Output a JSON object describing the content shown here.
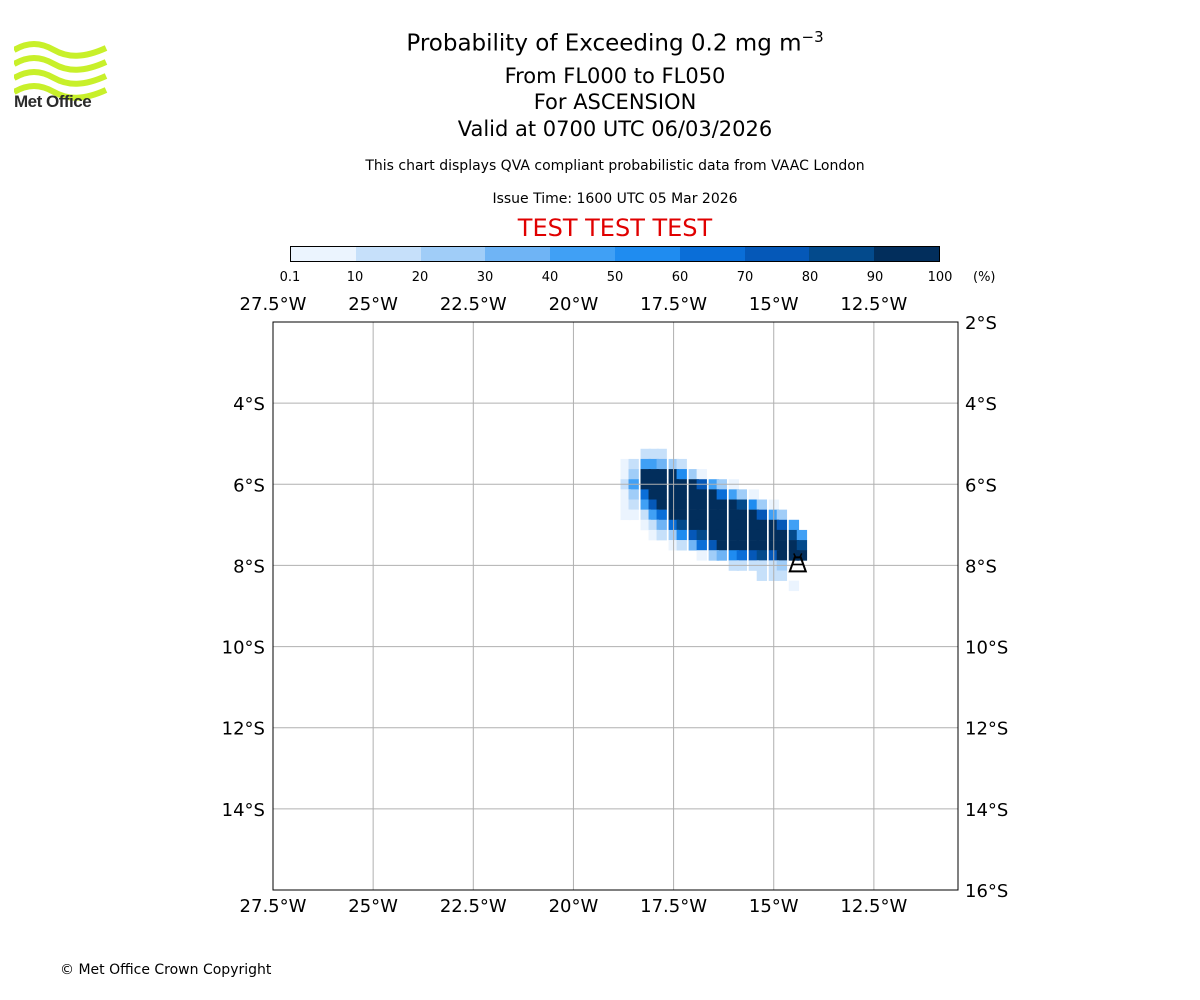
{
  "logo": {
    "text": "Met Office",
    "color": "#c8f02a"
  },
  "header": {
    "title_main": "Probability of Exceeding 0.2 mg m",
    "title_sup": "−3",
    "level_range": "From FL000 to FL050",
    "location": "For ASCENSION",
    "valid_time": "Valid at 0700 UTC 06/03/2026",
    "description": "This chart displays QVA compliant probabilistic data from VAAC London",
    "issue_time": "Issue Time: 1600 UTC 05 Mar 2026",
    "test_banner": "TEST TEST TEST",
    "test_color": "#e00000"
  },
  "colorbar": {
    "ticks": [
      "0.1",
      "10",
      "20",
      "30",
      "40",
      "50",
      "60",
      "70",
      "80",
      "90",
      "100"
    ],
    "unit": "(%)",
    "colors": [
      "#ebf4fe",
      "#c6e0fa",
      "#a0cdf8",
      "#6fb4f5",
      "#40a0f5",
      "#1f8cf0",
      "#0a6ed8",
      "#0558b8",
      "#034a8c",
      "#022e5c"
    ]
  },
  "footer": {
    "copyright": "© Met Office Crown Copyright"
  },
  "chart_data": {
    "type": "heatmap",
    "title": "Probability of Exceeding 0.2 mg m−3",
    "xlim": [
      -27.5,
      -10.4
    ],
    "ylim": [
      -16.0,
      -2.0
    ],
    "x_ticks": [
      -27.5,
      -25,
      -22.5,
      -20,
      -17.5,
      -15,
      -12.5
    ],
    "x_tick_labels": [
      "27.5°W",
      "25°W",
      "22.5°W",
      "20°W",
      "17.5°W",
      "15°W",
      "12.5°W"
    ],
    "y_ticks": [
      -2,
      -4,
      -6,
      -8,
      -10,
      -12,
      -14,
      -16
    ],
    "y_tick_labels_left": [
      "",
      "4°S",
      "6°S",
      "8°S",
      "10°S",
      "12°S",
      "14°S",
      ""
    ],
    "y_tick_labels_right": [
      "2°S",
      "4°S",
      "6°S",
      "8°S",
      "10°S",
      "12°S",
      "14°S",
      "16°S"
    ],
    "grid": true,
    "grid_color": "#b0b0b0",
    "cell_size_deg": 0.25,
    "cell_percent_bins": [
      "0.1-10",
      "10-20",
      "20-30",
      "30-40",
      "40-50",
      "50-60",
      "60-70",
      "70-80",
      "80-90",
      "90-100"
    ],
    "volcano": {
      "name": "Ascension",
      "lon": -14.4,
      "lat": -7.95
    },
    "cells": [
      [
        -18.2,
        -5.25,
        1
      ],
      [
        -18.0,
        -5.25,
        1
      ],
      [
        -17.8,
        -5.25,
        1
      ],
      [
        -18.7,
        -5.5,
        0
      ],
      [
        -18.5,
        -5.5,
        1
      ],
      [
        -18.2,
        -5.5,
        4
      ],
      [
        -18.0,
        -5.5,
        4
      ],
      [
        -17.8,
        -5.5,
        3
      ],
      [
        -17.5,
        -5.5,
        2
      ],
      [
        -17.3,
        -5.5,
        1
      ],
      [
        -18.7,
        -5.75,
        0
      ],
      [
        -18.5,
        -5.75,
        2
      ],
      [
        -18.2,
        -5.75,
        9
      ],
      [
        -18.0,
        -5.75,
        9
      ],
      [
        -17.8,
        -5.75,
        9
      ],
      [
        -17.5,
        -5.75,
        9
      ],
      [
        -17.3,
        -5.75,
        5
      ],
      [
        -17.0,
        -5.75,
        2
      ],
      [
        -16.8,
        -5.75,
        0
      ],
      [
        -18.7,
        -6.0,
        1
      ],
      [
        -18.5,
        -6.0,
        4
      ],
      [
        -18.2,
        -6.0,
        9
      ],
      [
        -18.0,
        -6.0,
        9
      ],
      [
        -17.8,
        -6.0,
        9
      ],
      [
        -17.5,
        -6.0,
        9
      ],
      [
        -17.3,
        -6.0,
        9
      ],
      [
        -17.0,
        -6.0,
        9
      ],
      [
        -16.8,
        -6.0,
        7
      ],
      [
        -16.5,
        -6.0,
        4
      ],
      [
        -16.3,
        -6.0,
        2
      ],
      [
        -16.0,
        -6.0,
        0
      ],
      [
        -18.7,
        -6.25,
        0
      ],
      [
        -18.5,
        -6.25,
        2
      ],
      [
        -18.2,
        -6.25,
        6
      ],
      [
        -18.0,
        -6.25,
        9
      ],
      [
        -17.8,
        -6.25,
        9
      ],
      [
        -17.5,
        -6.25,
        9
      ],
      [
        -17.3,
        -6.25,
        9
      ],
      [
        -17.0,
        -6.25,
        9
      ],
      [
        -16.8,
        -6.25,
        9
      ],
      [
        -16.5,
        -6.25,
        9
      ],
      [
        -16.3,
        -6.25,
        6
      ],
      [
        -16.0,
        -6.25,
        4
      ],
      [
        -15.8,
        -6.25,
        2
      ],
      [
        -15.5,
        -6.25,
        0
      ],
      [
        -18.7,
        -6.5,
        0
      ],
      [
        -18.5,
        -6.5,
        1
      ],
      [
        -18.2,
        -6.5,
        4
      ],
      [
        -18.0,
        -6.5,
        7
      ],
      [
        -17.8,
        -6.5,
        9
      ],
      [
        -17.5,
        -6.5,
        9
      ],
      [
        -17.3,
        -6.5,
        9
      ],
      [
        -17.0,
        -6.5,
        9
      ],
      [
        -16.8,
        -6.5,
        9
      ],
      [
        -16.5,
        -6.5,
        9
      ],
      [
        -16.3,
        -6.5,
        9
      ],
      [
        -16.0,
        -6.5,
        9
      ],
      [
        -15.8,
        -6.5,
        8
      ],
      [
        -15.5,
        -6.5,
        5
      ],
      [
        -15.3,
        -6.5,
        2
      ],
      [
        -15.0,
        -6.5,
        0
      ],
      [
        -18.7,
        -6.75,
        0
      ],
      [
        -18.5,
        -6.75,
        0
      ],
      [
        -18.2,
        -6.75,
        1
      ],
      [
        -18.0,
        -6.75,
        4
      ],
      [
        -17.8,
        -6.75,
        6
      ],
      [
        -17.5,
        -6.75,
        9
      ],
      [
        -17.3,
        -6.75,
        9
      ],
      [
        -17.0,
        -6.75,
        9
      ],
      [
        -16.8,
        -6.75,
        9
      ],
      [
        -16.5,
        -6.75,
        9
      ],
      [
        -16.3,
        -6.75,
        9
      ],
      [
        -16.0,
        -6.75,
        9
      ],
      [
        -15.8,
        -6.75,
        9
      ],
      [
        -15.5,
        -6.75,
        9
      ],
      [
        -15.3,
        -6.75,
        7
      ],
      [
        -15.0,
        -6.75,
        4
      ],
      [
        -14.8,
        -6.75,
        2
      ],
      [
        -18.2,
        -7.0,
        0
      ],
      [
        -18.0,
        -7.0,
        1
      ],
      [
        -17.8,
        -7.0,
        3
      ],
      [
        -17.5,
        -7.0,
        6
      ],
      [
        -17.3,
        -7.0,
        8
      ],
      [
        -17.0,
        -7.0,
        9
      ],
      [
        -16.8,
        -7.0,
        9
      ],
      [
        -16.5,
        -7.0,
        9
      ],
      [
        -16.3,
        -7.0,
        9
      ],
      [
        -16.0,
        -7.0,
        9
      ],
      [
        -15.8,
        -7.0,
        9
      ],
      [
        -15.5,
        -7.0,
        9
      ],
      [
        -15.3,
        -7.0,
        9
      ],
      [
        -15.0,
        -7.0,
        9
      ],
      [
        -14.8,
        -7.0,
        7
      ],
      [
        -14.5,
        -7.0,
        4
      ],
      [
        -18.0,
        -7.25,
        0
      ],
      [
        -17.8,
        -7.25,
        1
      ],
      [
        -17.5,
        -7.25,
        2
      ],
      [
        -17.3,
        -7.25,
        5
      ],
      [
        -17.0,
        -7.25,
        7
      ],
      [
        -16.8,
        -7.25,
        8
      ],
      [
        -16.5,
        -7.25,
        9
      ],
      [
        -16.3,
        -7.25,
        9
      ],
      [
        -16.0,
        -7.25,
        9
      ],
      [
        -15.8,
        -7.25,
        9
      ],
      [
        -15.5,
        -7.25,
        9
      ],
      [
        -15.3,
        -7.25,
        9
      ],
      [
        -15.0,
        -7.25,
        9
      ],
      [
        -14.8,
        -7.25,
        9
      ],
      [
        -14.5,
        -7.25,
        8
      ],
      [
        -14.3,
        -7.25,
        4
      ],
      [
        -17.5,
        -7.5,
        0
      ],
      [
        -17.3,
        -7.5,
        1
      ],
      [
        -17.0,
        -7.5,
        3
      ],
      [
        -16.8,
        -7.5,
        6
      ],
      [
        -16.5,
        -7.5,
        7
      ],
      [
        -16.3,
        -7.5,
        9
      ],
      [
        -16.0,
        -7.5,
        9
      ],
      [
        -15.8,
        -7.5,
        9
      ],
      [
        -15.5,
        -7.5,
        9
      ],
      [
        -15.3,
        -7.5,
        9
      ],
      [
        -15.0,
        -7.5,
        9
      ],
      [
        -14.8,
        -7.5,
        9
      ],
      [
        -14.5,
        -7.5,
        9
      ],
      [
        -14.3,
        -7.5,
        8
      ],
      [
        -16.8,
        -7.75,
        0
      ],
      [
        -16.5,
        -7.75,
        2
      ],
      [
        -16.3,
        -7.75,
        3
      ],
      [
        -16.0,
        -7.75,
        5
      ],
      [
        -15.8,
        -7.75,
        6
      ],
      [
        -15.5,
        -7.75,
        7
      ],
      [
        -15.3,
        -7.75,
        8
      ],
      [
        -15.0,
        -7.75,
        7
      ],
      [
        -14.8,
        -7.75,
        9
      ],
      [
        -14.5,
        -7.75,
        9
      ],
      [
        -14.3,
        -7.75,
        9
      ],
      [
        -16.0,
        -8.0,
        1
      ],
      [
        -15.8,
        -8.0,
        1
      ],
      [
        -15.5,
        -8.0,
        1
      ],
      [
        -15.3,
        -8.0,
        1
      ],
      [
        -15.0,
        -8.0,
        1
      ],
      [
        -14.8,
        -8.0,
        2
      ],
      [
        -15.3,
        -8.25,
        1
      ],
      [
        -15.0,
        -8.25,
        1
      ],
      [
        -14.8,
        -8.25,
        1
      ],
      [
        -14.5,
        -8.5,
        0
      ]
    ]
  }
}
